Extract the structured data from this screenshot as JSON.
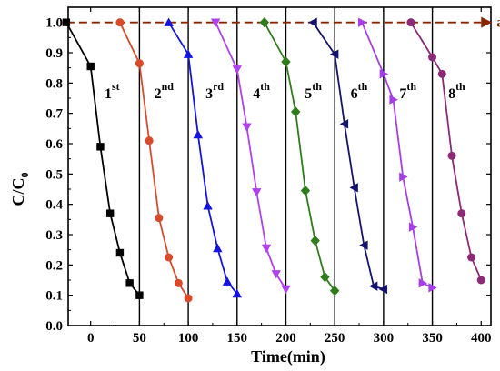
{
  "chart_data": {
    "type": "line",
    "title": "",
    "xlabel": "Time(min)",
    "ylabel": "C/C0",
    "ylabel_main": "C/C",
    "ylabel_sub": "0",
    "xlim": [
      -23,
      410
    ],
    "ylim": [
      0.0,
      1.05
    ],
    "xticks": [
      0,
      50,
      100,
      150,
      200,
      250,
      300,
      350,
      400
    ],
    "xtick_labels": [
      "0",
      "50",
      "100",
      "150",
      "200",
      "250",
      "300",
      "350",
      "400"
    ],
    "yticks": [
      0.0,
      0.1,
      0.2,
      0.3,
      0.4,
      0.5,
      0.6,
      0.7,
      0.8,
      0.9,
      1.0
    ],
    "ytick_labels": [
      "0.0",
      "0.1",
      "0.2",
      "0.3",
      "0.4",
      "0.5",
      "0.6",
      "0.7",
      "0.8",
      "0.9",
      "1.0"
    ],
    "grid": false,
    "legend": "none",
    "divider_lines_x": [
      50,
      100,
      150,
      200,
      250,
      300,
      350
    ],
    "reference_line": {
      "label": "ads",
      "y": 1.0,
      "x_start": -25,
      "x_end": 400,
      "color": "#8b2500"
    },
    "series": [
      {
        "label": "1",
        "label_sup": "st",
        "label_at": [
          22,
          0.75
        ],
        "color": "#000000",
        "marker": "square",
        "x": [
          -25,
          0,
          10,
          20,
          30,
          40,
          50
        ],
        "y": [
          1.0,
          0.855,
          0.59,
          0.37,
          0.24,
          0.14,
          0.1
        ]
      },
      {
        "label": "2",
        "label_sup": "nd",
        "label_at": [
          75,
          0.75
        ],
        "color": "#d94a2b",
        "marker": "circle",
        "x": [
          30,
          50,
          60,
          70,
          80,
          90,
          100
        ],
        "y": [
          1.0,
          0.865,
          0.61,
          0.355,
          0.225,
          0.14,
          0.09
        ]
      },
      {
        "label": "3",
        "label_sup": "rd",
        "label_at": [
          127,
          0.75
        ],
        "color": "#1414e0",
        "marker": "triangle-up",
        "x": [
          80,
          100,
          110,
          120,
          130,
          140,
          150
        ],
        "y": [
          1.0,
          0.895,
          0.63,
          0.395,
          0.255,
          0.145,
          0.105
        ]
      },
      {
        "label": "4",
        "label_sup": "th",
        "label_at": [
          175,
          0.75
        ],
        "color": "#b040f0",
        "marker": "triangle-down",
        "x": [
          128,
          150,
          160,
          170,
          180,
          190,
          200
        ],
        "y": [
          1.0,
          0.845,
          0.655,
          0.44,
          0.255,
          0.17,
          0.12
        ]
      },
      {
        "label": "5",
        "label_sup": "th",
        "label_at": [
          228,
          0.75
        ],
        "color": "#2e7d1a",
        "marker": "diamond",
        "x": [
          178,
          200,
          210,
          220,
          230,
          240,
          250
        ],
        "y": [
          1.0,
          0.87,
          0.705,
          0.445,
          0.28,
          0.16,
          0.115
        ]
      },
      {
        "label": "6",
        "label_sup": "th",
        "label_at": [
          275,
          0.75
        ],
        "color": "#141470",
        "marker": "triangle-left",
        "x": [
          228,
          250,
          260,
          270,
          280,
          290,
          300
        ],
        "y": [
          1.0,
          0.895,
          0.665,
          0.455,
          0.265,
          0.13,
          0.12
        ]
      },
      {
        "label": "7",
        "label_sup": "th",
        "label_at": [
          325,
          0.75
        ],
        "color": "#a63ee8",
        "marker": "triangle-right",
        "x": [
          278,
          300,
          310,
          320,
          330,
          340,
          350
        ],
        "y": [
          1.0,
          0.83,
          0.745,
          0.49,
          0.325,
          0.14,
          0.125
        ]
      },
      {
        "label": "8",
        "label_sup": "th",
        "label_at": [
          375,
          0.75
        ],
        "color": "#8c2a78",
        "marker": "circle",
        "x": [
          328,
          350,
          360,
          370,
          380,
          390,
          400
        ],
        "y": [
          1.0,
          0.885,
          0.83,
          0.56,
          0.37,
          0.225,
          0.15
        ]
      }
    ]
  }
}
